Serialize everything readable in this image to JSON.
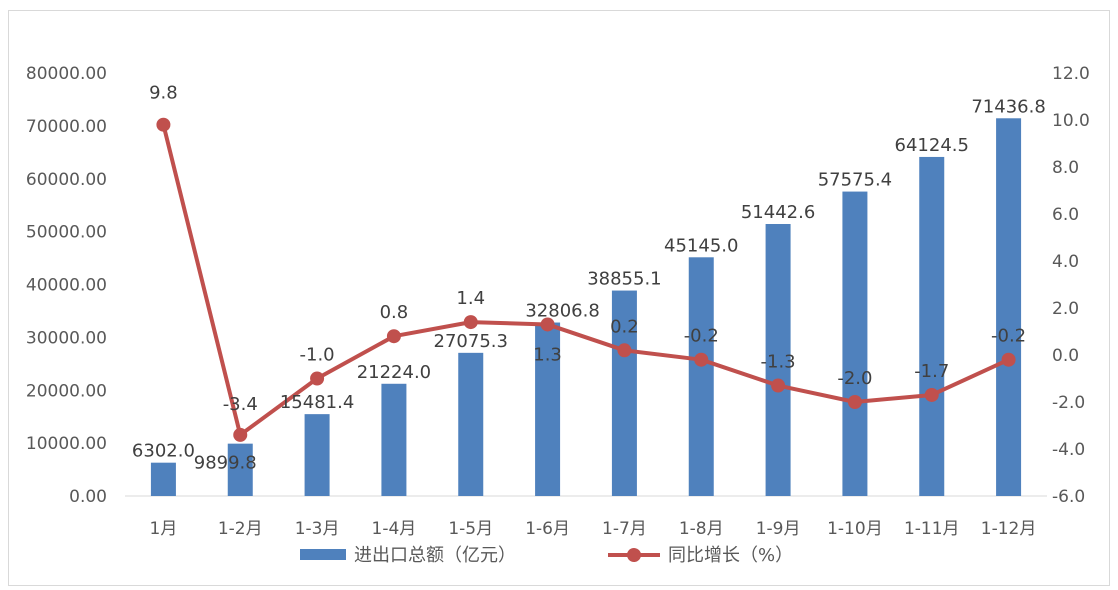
{
  "chart_data": {
    "type": "bar",
    "categories": [
      "1月",
      "1-2月",
      "1-3月",
      "1-4月",
      "1-5月",
      "1-6月",
      "1-7月",
      "1-8月",
      "1-9月",
      "1-10月",
      "1-11月",
      "1-12月"
    ],
    "series": [
      {
        "name": "进出口总额（亿元）",
        "type": "bar",
        "axis": "left",
        "color": "#4f81bd",
        "values": [
          6302.0,
          9899.8,
          15481.4,
          21224.0,
          27075.3,
          32806.8,
          38855.1,
          45145.0,
          51442.6,
          57575.4,
          64124.5,
          71436.8
        ],
        "labels": [
          "6302.0",
          "9899.8",
          "15481.4",
          "21224.0",
          "27075.3",
          "32806.8",
          "38855.1",
          "45145.0",
          "51442.6",
          "57575.4",
          "64124.5",
          "71436.8"
        ]
      },
      {
        "name": "同比增长（%）",
        "type": "line",
        "axis": "right",
        "color": "#c0504d",
        "values": [
          9.8,
          -3.4,
          -1.0,
          0.8,
          1.4,
          1.3,
          0.2,
          -0.2,
          -1.3,
          -2.0,
          -1.7,
          -0.2
        ],
        "labels": [
          "9.8",
          "-3.4",
          "-1.0",
          "0.8",
          "1.4",
          "1.3",
          "0.2",
          "-0.2",
          "-1.3",
          "-2.0",
          "-1.7",
          "-0.2"
        ]
      }
    ],
    "y_left": {
      "range": [
        0,
        80000
      ],
      "ticks": [
        "0.00",
        "10000.00",
        "20000.00",
        "30000.00",
        "40000.00",
        "50000.00",
        "60000.00",
        "70000.00",
        "80000.00"
      ]
    },
    "y_right": {
      "range": [
        -6,
        12
      ],
      "ticks": [
        "-6.0",
        "-4.0",
        "-2.0",
        "0.0",
        "2.0",
        "4.0",
        "6.0",
        "8.0",
        "10.0",
        "12.0"
      ]
    },
    "title": "",
    "grid": false,
    "legend_position": "bottom"
  }
}
